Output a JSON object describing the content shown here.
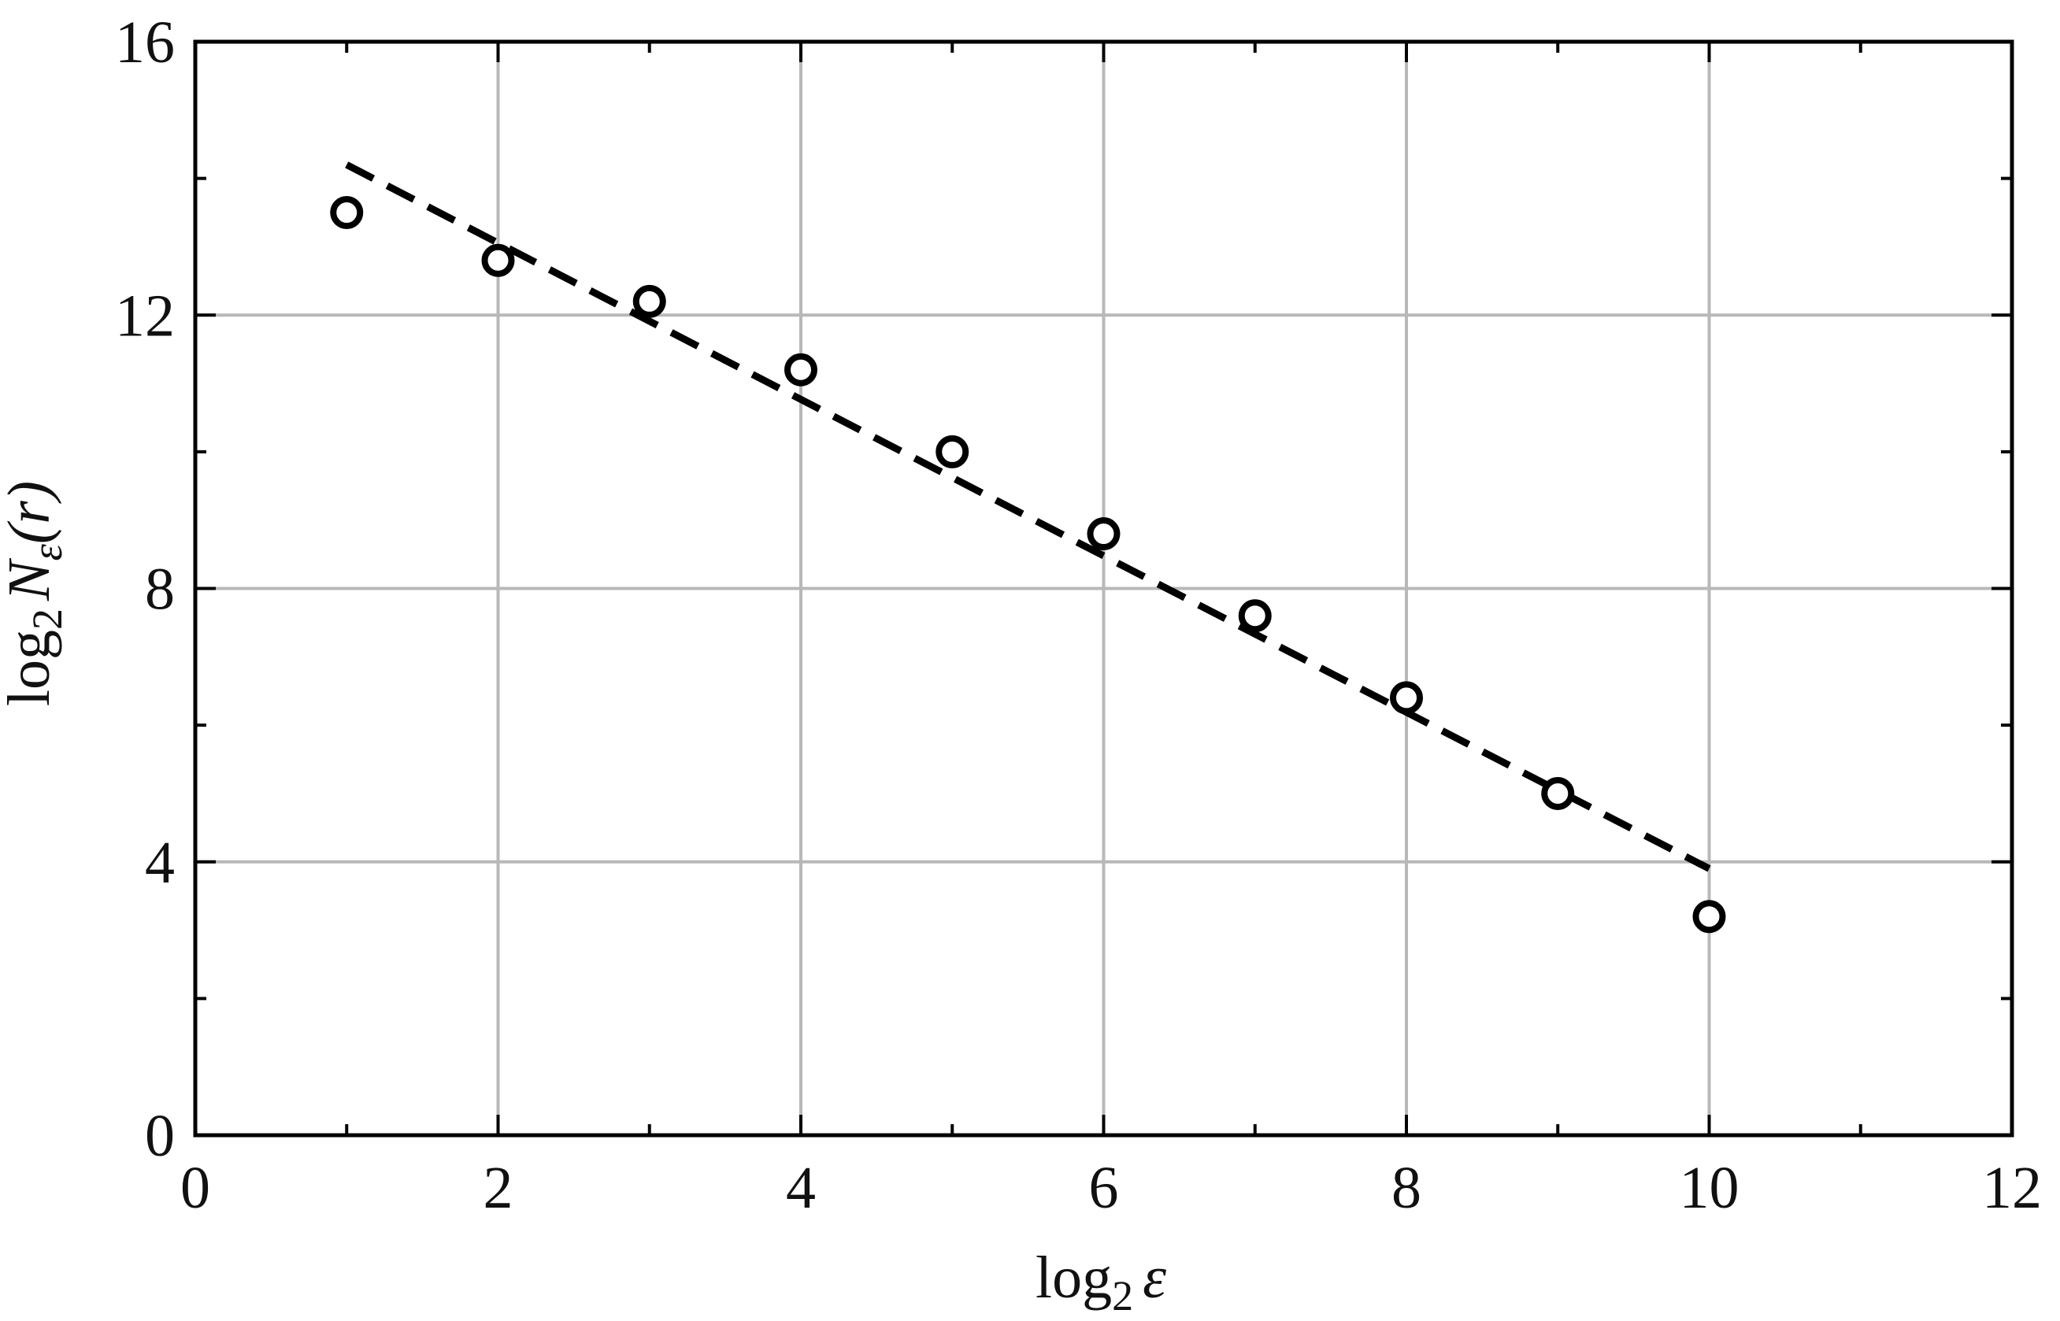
{
  "chart_data": {
    "type": "scatter",
    "title": "",
    "xlabel": {
      "main": "log",
      "sub": "2",
      "var": "ε"
    },
    "ylabel": {
      "main": "log",
      "sub": "2",
      "var": "N",
      "varsub": "ε",
      "tail": "(r)"
    },
    "xlim": [
      0,
      12
    ],
    "ylim": [
      0,
      16
    ],
    "xticks": [
      0,
      2,
      4,
      6,
      8,
      10,
      12
    ],
    "yticks": [
      0,
      4,
      8,
      12,
      16
    ],
    "x_minor_ticks": [
      1,
      3,
      5,
      7,
      9,
      11
    ],
    "y_minor_ticks": [
      2,
      6,
      10,
      14
    ],
    "grid": true,
    "grid_color": "#b8b8b8",
    "axis_color": "#000000",
    "series": [
      {
        "type": "scatter",
        "marker": "open-circle",
        "color": "#000000",
        "x": [
          1,
          2,
          3,
          4,
          5,
          6,
          7,
          8,
          9,
          10
        ],
        "y": [
          13.5,
          12.8,
          12.2,
          11.2,
          10.0,
          8.8,
          7.6,
          6.4,
          5.0,
          3.2
        ]
      },
      {
        "type": "line",
        "style": "dashed",
        "color": "#000000",
        "x": [
          1,
          10
        ],
        "y": [
          14.2,
          3.9
        ]
      }
    ]
  }
}
